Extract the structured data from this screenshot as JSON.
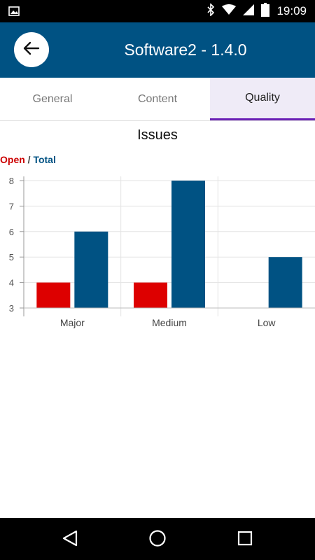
{
  "status_bar": {
    "time": "19:09",
    "icons": [
      "image-icon",
      "bluetooth-icon",
      "wifi-icon",
      "cell-signal-icon",
      "battery-icon"
    ]
  },
  "app_bar": {
    "title": "Software2 - 1.4.0",
    "back_icon": "arrow-left-icon"
  },
  "tabs": [
    {
      "label": "General",
      "active": false
    },
    {
      "label": "Content",
      "active": false
    },
    {
      "label": "Quality",
      "active": true
    }
  ],
  "legend": {
    "open": "Open",
    "separator": "/",
    "total": "Total"
  },
  "colors": {
    "primary": "#005283",
    "open": "#dd0000",
    "tab_indicator": "#6a1fb5"
  },
  "chart_data": {
    "type": "bar",
    "title": "Issues",
    "categories": [
      "Major",
      "Medium",
      "Low"
    ],
    "series": [
      {
        "name": "Open",
        "values": [
          4,
          4,
          null
        ]
      },
      {
        "name": "Total",
        "values": [
          6,
          8,
          5
        ]
      }
    ],
    "ylim": [
      3,
      8
    ],
    "yticks": [
      3,
      4,
      5,
      6,
      7,
      8
    ],
    "grid": true,
    "legend_position": "top-left"
  },
  "nav_bar": {
    "buttons": [
      "back-triangle-icon",
      "home-circle-icon",
      "recents-square-icon"
    ]
  }
}
